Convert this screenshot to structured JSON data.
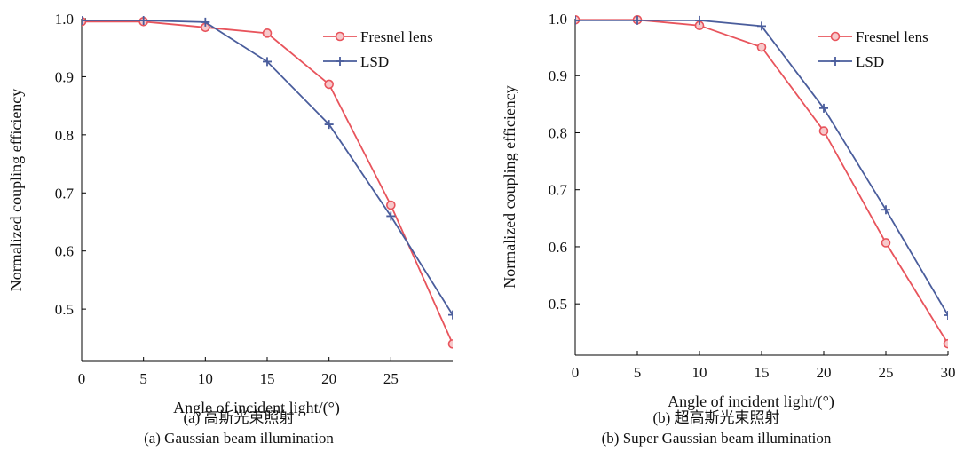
{
  "chart_data": [
    {
      "type": "line",
      "xlabel": "Angle of incident light/(°)",
      "ylabel": "Normalized coupling efficiency",
      "xlim": [
        0,
        30
      ],
      "ylim": [
        0.41,
        1.0
      ],
      "xticks": [
        0,
        5,
        10,
        15,
        20,
        25
      ],
      "yticks": [
        0.5,
        0.6,
        0.7,
        0.8,
        0.9,
        1.0
      ],
      "ytick_labels": [
        "0.5",
        "0.6",
        "0.7",
        "0.8",
        "0.9",
        "1.0"
      ],
      "grid": false,
      "legend_position": "top-right",
      "caption_cn": "(a) 高斯光束照射",
      "caption_en": "(a) Gaussian beam illumination",
      "x": [
        0,
        5,
        10,
        15,
        20,
        25,
        30
      ],
      "series": [
        {
          "name": "Fresnel lens",
          "marker": "circle",
          "color": "#e8545c",
          "values": [
            0.995,
            0.995,
            0.985,
            0.975,
            0.887,
            0.679,
            0.44
          ]
        },
        {
          "name": "LSD",
          "marker": "plus",
          "color": "#4a5d9c",
          "values": [
            0.997,
            0.997,
            0.994,
            0.926,
            0.818,
            0.66,
            0.49
          ]
        }
      ]
    },
    {
      "type": "line",
      "xlabel": "Angle of incident light/(°)",
      "ylabel": "Normalized coupling efficiency",
      "xlim": [
        0,
        30
      ],
      "ylim": [
        0.41,
        1.0
      ],
      "xticks": [
        0,
        5,
        10,
        15,
        20,
        25,
        30
      ],
      "yticks": [
        0.5,
        0.6,
        0.7,
        0.8,
        0.9,
        1.0
      ],
      "ytick_labels": [
        "0.5",
        "0.6",
        "0.7",
        "0.8",
        "0.9",
        "1.0"
      ],
      "grid": false,
      "legend_position": "top-right",
      "caption_cn": "(b) 超高斯光束照射",
      "caption_en": "(b) Super Gaussian beam illumination",
      "x": [
        0,
        5,
        10,
        15,
        20,
        25,
        30
      ],
      "series": [
        {
          "name": "Fresnel lens",
          "marker": "circle",
          "color": "#e8545c",
          "values": [
            0.998,
            0.998,
            0.988,
            0.95,
            0.803,
            0.607,
            0.43
          ]
        },
        {
          "name": "LSD",
          "marker": "plus",
          "color": "#4a5d9c",
          "values": [
            0.997,
            0.997,
            0.997,
            0.987,
            0.843,
            0.665,
            0.48
          ]
        }
      ]
    }
  ]
}
